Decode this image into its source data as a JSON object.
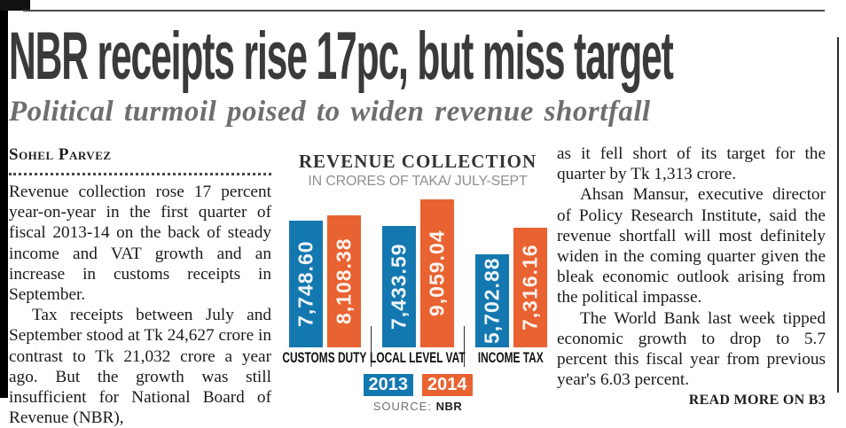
{
  "headline": "NBR receipts rise 17pc, but miss target",
  "subheadline": "Political turmoil poised to widen revenue shortfall",
  "byline": "Sohel Parvez",
  "left_column": {
    "paragraphs": [
      "Revenue collection rose 17 percent year-on-year in the first quarter of fiscal 2013-14 on the back of steady income and VAT growth and an increase in customs receipts in September.",
      "Tax receipts between July and September stood at Tk 24,627 crore in contrast to Tk 21,032 crore a year ago. But the growth was still insufficient for National Board of Revenue (NBR),"
    ]
  },
  "right_column": {
    "paragraphs": [
      "as it fell short of its target for the quarter by Tk 1,313 crore.",
      "Ahsan Mansur, executive director of Policy Research Institute, said the revenue shortfall will most definitely widen in the coming quarter given the bleak economic outlook arising from the political impasse.",
      "The World Bank last week tipped economic growth to drop to 5.7 percent this fiscal year from previous year's 6.03 percent."
    ],
    "read_more": "READ MORE ON B3"
  },
  "chart": {
    "source_label": "SOURCE:",
    "source_value": "NBR"
  },
  "chart_data": {
    "type": "bar",
    "title": "REVENUE COLLECTION",
    "subtitle": "IN CRORES OF TAKA/ JULY-SEPT",
    "categories": [
      "CUSTOMS DUTY",
      "LOCAL LEVEL VAT",
      "INCOME TAX"
    ],
    "series": [
      {
        "name": "2013",
        "color": "#1478B0",
        "values": [
          7748.6,
          7433.59,
          5702.88
        ],
        "labels": [
          "7,748.60",
          "7,433.59",
          "5,702.88"
        ]
      },
      {
        "name": "2014",
        "color": "#E96231",
        "values": [
          8108.38,
          9059.04,
          7316.16
        ],
        "labels": [
          "8,108.38",
          "9,059.04",
          "7,316.16"
        ]
      }
    ],
    "ylim": [
      0,
      9059.04
    ],
    "grid": false,
    "legend_position": "bottom",
    "source": "NBR"
  }
}
